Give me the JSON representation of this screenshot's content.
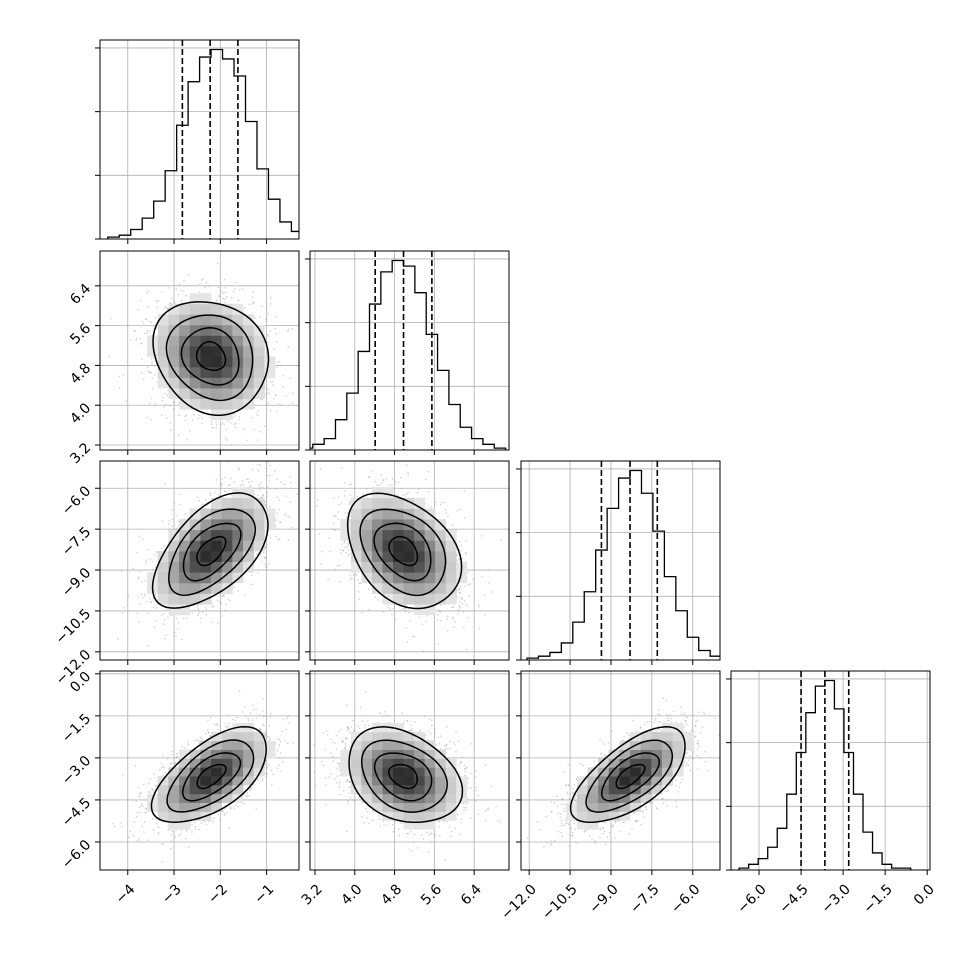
{
  "chart_data": {
    "type": "corner",
    "parameters": [
      {
        "ticks": [
          -4,
          -3,
          -2,
          -1
        ],
        "tick_labels": [
          "−4",
          "−3",
          "−2",
          "−1"
        ],
        "range": [
          -4.6,
          -0.3
        ],
        "mean": -2.2,
        "sd": 0.62,
        "quantiles": [
          -2.82,
          -2.22,
          -1.62
        ]
      },
      {
        "ticks": [
          3.2,
          4.0,
          4.8,
          5.6,
          6.4
        ],
        "tick_labels": [
          "3.2",
          "4.0",
          "4.8",
          "5.6",
          "6.4"
        ],
        "range": [
          3.1,
          7.1
        ],
        "mean": 4.98,
        "sd": 0.57,
        "quantiles": [
          4.41,
          4.98,
          5.55
        ]
      },
      {
        "ticks": [
          -12.0,
          -10.5,
          -9.0,
          -7.5,
          -6.0
        ],
        "tick_labels": [
          "−12.0",
          "−10.5",
          "−9.0",
          "−7.5",
          "−6.0"
        ],
        "range": [
          -12.3,
          -5.0
        ],
        "mean": -8.3,
        "sd": 1.05,
        "quantiles": [
          -9.35,
          -8.3,
          -7.3
        ]
      },
      {
        "ticks": [
          -6.0,
          -4.5,
          -3.0,
          -1.5,
          0.0
        ],
        "tick_labels": [
          "−6.0",
          "−4.5",
          "−3.0",
          "−1.5",
          "0.0"
        ],
        "range": [
          -7.0,
          0.1
        ],
        "mean": -3.65,
        "sd": 0.85,
        "quantiles": [
          -4.5,
          -3.65,
          -2.8
        ]
      }
    ],
    "correlations": {
      "1-0": -0.15,
      "2-0": 0.55,
      "2-1": -0.35,
      "3-0": 0.6,
      "3-1": -0.3,
      "3-2": 0.65
    },
    "histogram_counts": [
      [
        1,
        2,
        5,
        11,
        20,
        36,
        60,
        83,
        96,
        100,
        95,
        86,
        62,
        37,
        21,
        9,
        4,
        1
      ],
      [
        1,
        3,
        6,
        16,
        30,
        52,
        77,
        94,
        100,
        97,
        83,
        61,
        42,
        24,
        12,
        6,
        3,
        1
      ],
      [
        1,
        2,
        4,
        9,
        20,
        36,
        58,
        80,
        96,
        100,
        88,
        68,
        44,
        26,
        12,
        5,
        2,
        1
      ],
      [
        1,
        3,
        6,
        12,
        22,
        40,
        62,
        83,
        97,
        100,
        85,
        62,
        40,
        20,
        9,
        3,
        1,
        1
      ]
    ],
    "contour_levels_sigma": [
      0.5,
      1.0,
      1.5,
      2.0
    ],
    "grid": true,
    "title": "",
    "xlabel": "",
    "ylabel": ""
  }
}
